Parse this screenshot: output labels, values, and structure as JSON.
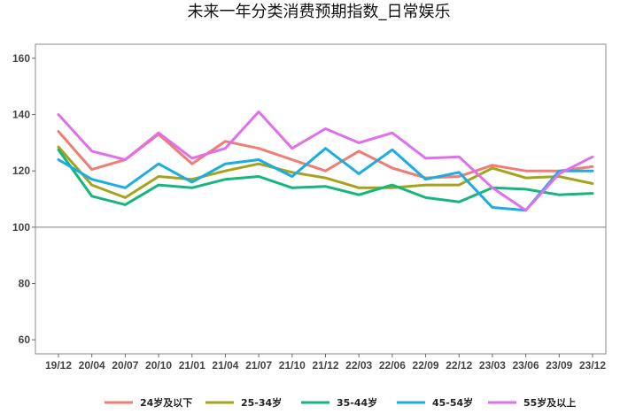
{
  "chart_data": {
    "type": "line",
    "title": "未来一年分类消费预期指数_日常娱乐",
    "xlabel": "",
    "ylabel": "",
    "categories": [
      "19/12",
      "20/04",
      "20/07",
      "20/10",
      "21/01",
      "21/04",
      "21/07",
      "21/10",
      "21/12",
      "22/03",
      "22/06",
      "22/09",
      "22/12",
      "23/03",
      "23/06",
      "23/09",
      "23/12"
    ],
    "ylim": [
      55,
      165
    ],
    "yticks": [
      60,
      80,
      100,
      120,
      140,
      160
    ],
    "reference_line": 100,
    "grid": false,
    "legend_position": "bottom",
    "series": [
      {
        "name": "24岁及以下",
        "color": "#F07C74",
        "values": [
          134,
          120.5,
          124,
          133,
          122.5,
          130.5,
          128,
          124,
          120,
          127,
          121,
          117.5,
          118,
          122,
          120,
          120,
          121.5
        ]
      },
      {
        "name": "25-34岁",
        "color": "#A5A31A",
        "values": [
          128.5,
          115,
          110.5,
          118,
          117,
          120,
          122.5,
          119.5,
          117.5,
          114,
          114,
          115,
          115,
          121,
          117.5,
          118,
          115.5
        ]
      },
      {
        "name": "35-44岁",
        "color": "#14B77B",
        "values": [
          127.5,
          111,
          108,
          115,
          114,
          117,
          118,
          114,
          114.5,
          111.5,
          115,
          110.5,
          109,
          114,
          113.5,
          111.5,
          112
        ]
      },
      {
        "name": "45-54岁",
        "color": "#1AADE4",
        "values": [
          124,
          117,
          114,
          122.5,
          116,
          122.5,
          124,
          118,
          128,
          119,
          127.5,
          117,
          119.5,
          107,
          106,
          120,
          120
        ]
      },
      {
        "name": "55岁及以上",
        "color": "#E06FEC",
        "values": [
          140,
          127,
          124,
          133.5,
          124.5,
          128,
          141,
          128,
          135,
          130,
          133.5,
          124.5,
          125,
          114,
          106,
          119,
          125
        ]
      }
    ]
  }
}
